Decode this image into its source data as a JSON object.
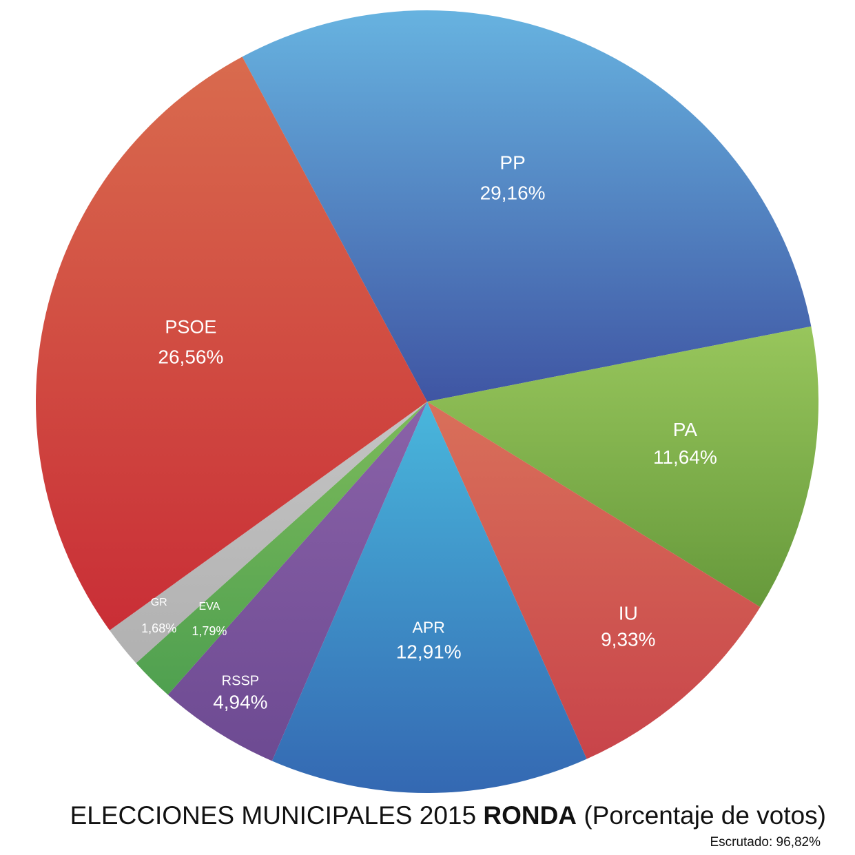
{
  "chart_data": {
    "type": "pie",
    "title": "ELECCIONES MUNICIPALES 2015 RONDA (Porcentaje de votos)",
    "slices": [
      {
        "label": "PP",
        "value": 29.16,
        "display": "29,16%",
        "color_top": "#67b3e0",
        "color_bottom": "#3f55a3"
      },
      {
        "label": "PA",
        "value": 11.64,
        "display": "11,64%",
        "color_top": "#98c65c",
        "color_bottom": "#66993b"
      },
      {
        "label": "IU",
        "value": 9.33,
        "display": "9,33%",
        "color_top": "#d9705a",
        "color_bottom": "#c8444a"
      },
      {
        "label": "APR",
        "value": 12.91,
        "display": "12,91%",
        "color_top": "#49b7dc",
        "color_bottom": "#3468b2"
      },
      {
        "label": "RSSP",
        "value": 4.94,
        "display": "4,94%",
        "color_top": "#8a62a8",
        "color_bottom": "#6d4a92"
      },
      {
        "label": "EVA",
        "value": 1.79,
        "display": "1,79%",
        "color_top": "#7cba5a",
        "color_bottom": "#4fa050"
      },
      {
        "label": "GR",
        "value": 1.68,
        "display": "1,68%",
        "color_top": "#c4c4c4",
        "color_bottom": "#b1b1b1"
      },
      {
        "label": "PSOE",
        "value": 26.56,
        "display": "26,56%",
        "color_top": "#d96b4e",
        "color_bottom": "#c92e36"
      }
    ]
  },
  "caption": {
    "prefix": "ELECCIONES MUNICIPALES 2015",
    "place": "RONDA",
    "suffix": "(Porcentaje de votos)",
    "scrutiny": "Escrutado: 96,82%"
  }
}
